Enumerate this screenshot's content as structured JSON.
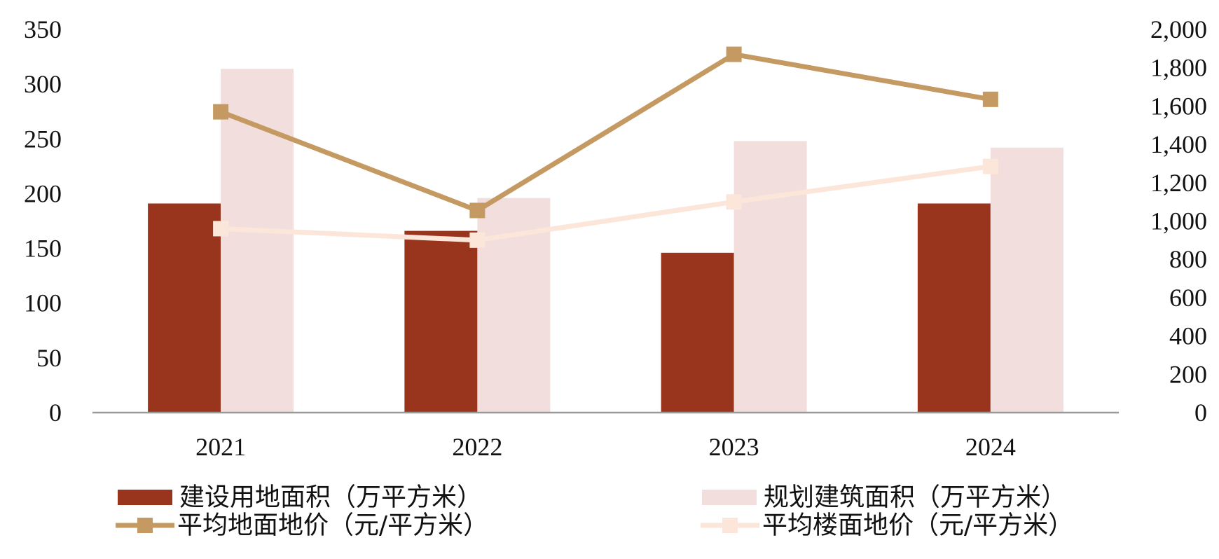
{
  "chart_data": {
    "type": "bar",
    "categories": [
      "2021",
      "2022",
      "2023",
      "2024"
    ],
    "y_left": {
      "ylim": [
        0,
        350
      ],
      "ticks": [
        "0",
        "50",
        "100",
        "150",
        "200",
        "250",
        "300",
        "350"
      ]
    },
    "y_right": {
      "ylim": [
        0,
        2000
      ],
      "ticks": [
        "0",
        "200",
        "400",
        "600",
        "800",
        "1,000",
        "1,200",
        "1,400",
        "1,600",
        "1,800",
        "2,000"
      ]
    },
    "series": [
      {
        "name": "建设用地面积（万平方米）",
        "kind": "bar",
        "axis": "left",
        "color": "#98351C",
        "values": [
          191,
          166,
          146,
          191
        ]
      },
      {
        "name": "规划建筑面积（万平方米）",
        "kind": "bar",
        "axis": "left",
        "color": "#F2DEDD",
        "values": [
          314,
          196,
          248,
          242
        ]
      },
      {
        "name": "平均地面地价（元/平方米）",
        "kind": "line",
        "axis": "right",
        "color": "#C49A62",
        "marker": "square",
        "values": [
          1570,
          1055,
          1870,
          1635
        ]
      },
      {
        "name": "平均楼面地价（元/平方米）",
        "kind": "line",
        "axis": "right",
        "color": "#FCE6DA",
        "marker": "square",
        "values": [
          960,
          900,
          1100,
          1285
        ]
      }
    ],
    "grid": false,
    "legend_position": "bottom"
  }
}
